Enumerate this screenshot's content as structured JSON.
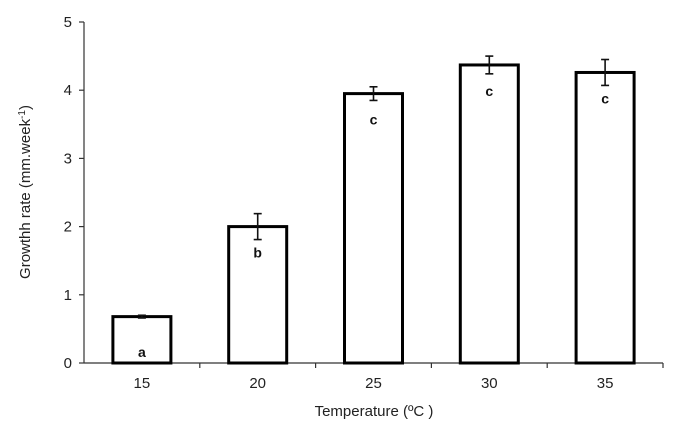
{
  "chart_data": {
    "type": "bar",
    "title": "",
    "xlabel": "Temperature (ºC )",
    "ylabel": "Growthh rate (mm.week",
    "ylabel_superscript": "-1",
    "ylabel_suffix": ")",
    "categories": [
      "15",
      "20",
      "25",
      "30",
      "35"
    ],
    "values": [
      0.68,
      2.0,
      3.95,
      4.37,
      4.26
    ],
    "errors": [
      0.02,
      0.19,
      0.1,
      0.13,
      0.19
    ],
    "significance_labels": [
      "a",
      "b",
      "c",
      "c",
      "c"
    ],
    "ylim": [
      0,
      5
    ],
    "yticks": [
      "0",
      "1",
      "2",
      "3",
      "4",
      "5"
    ],
    "grid": false,
    "legend": null,
    "colors": {
      "bar_fill": "#ffffff",
      "bar_stroke": "#000000",
      "axis": "#333333"
    }
  }
}
